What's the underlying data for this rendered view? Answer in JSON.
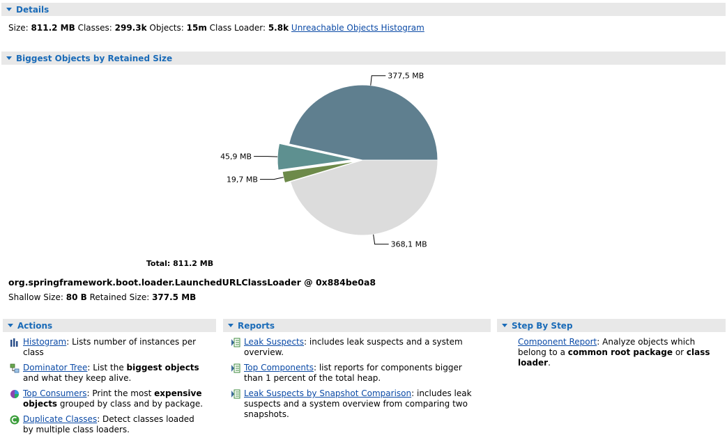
{
  "details": {
    "section_title": "Details",
    "size_label": "Size:",
    "size_value": "811.2 MB",
    "classes_label": "Classes:",
    "classes_value": "299.3k",
    "objects_label": "Objects:",
    "objects_value": "15m",
    "class_loader_label": "Class Loader:",
    "class_loader_value": "5.8k",
    "unreachable_link": "Unreachable Objects Histogram"
  },
  "biggest": {
    "section_title": "Biggest Objects by Retained Size",
    "total_label": "Total: 811.2 MB",
    "object_name": "org.springframework.boot.loader.LaunchedURLClassLoader @ 0x884be0a8",
    "shallow_label": "Shallow Size:",
    "shallow_value": "80 B",
    "retained_label": "Retained Size:",
    "retained_value": "377.5 MB"
  },
  "chart_data": {
    "type": "pie",
    "total": 811.2,
    "slices": [
      {
        "label": "377,5 MB",
        "value": 377.5,
        "color": "#5f7f8f"
      },
      {
        "label": "45,9 MB",
        "value": 45.9,
        "color": "#5e9090"
      },
      {
        "label": "19,7 MB",
        "value": 19.7,
        "color": "#6d8a4a"
      },
      {
        "label": "368,1 MB",
        "value": 368.1,
        "color": "#dcdcdc"
      }
    ]
  },
  "actions": {
    "section_title": "Actions",
    "histogram": {
      "link": "Histogram",
      "text": ": Lists number of instances per class"
    },
    "dominator": {
      "link": "Dominator Tree",
      "text1": ": List the ",
      "bold": "biggest objects",
      "text2": " and what they keep alive."
    },
    "top_consumers": {
      "link": "Top Consumers",
      "text1": ": Print the most ",
      "bold": "expensive objects",
      "text2": " grouped by class and by package."
    },
    "duplicate": {
      "link": "Duplicate Classes",
      "text": ": Detect classes loaded by multiple class loaders."
    }
  },
  "reports": {
    "section_title": "Reports",
    "leak_suspects": {
      "link": "Leak Suspects",
      "text": ": includes leak suspects and a system overview."
    },
    "top_components": {
      "link": "Top Components",
      "text": ": list reports for components bigger than 1 percent of the total heap."
    },
    "leak_compare": {
      "link": "Leak Suspects by Snapshot Comparison",
      "text": ": includes leak suspects and a system overview from comparing two snapshots."
    }
  },
  "step": {
    "section_title": "Step By Step",
    "component_report": {
      "link": "Component Report",
      "text1": ": Analyze objects which belong to a ",
      "bold1": "common root package",
      "text2": " or ",
      "bold2": "class loader",
      "text3": "."
    }
  },
  "colors": {
    "accent": "#1a6bb8",
    "link": "#0b4aa6",
    "bar": "#e8e8e8"
  }
}
